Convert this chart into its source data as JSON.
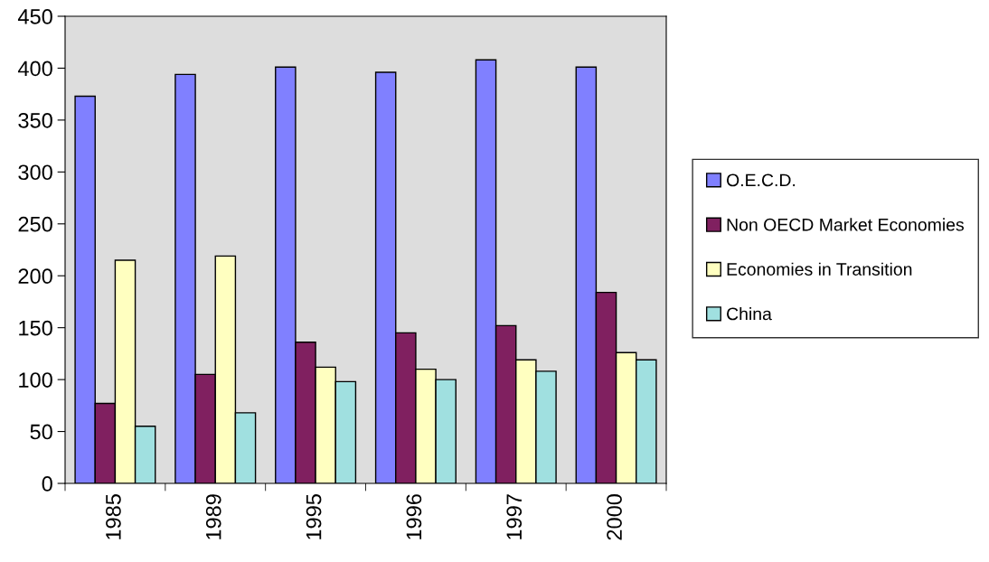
{
  "chart_data": {
    "type": "bar",
    "categories": [
      "1985",
      "1989",
      "1995",
      "1996",
      "1997",
      "2000"
    ],
    "series": [
      {
        "name": "O.E.C.D.",
        "color": "#8080ff",
        "values": [
          373,
          394,
          401,
          396,
          408,
          401
        ]
      },
      {
        "name": "Non OECD Market Economies",
        "color": "#802060",
        "values": [
          77,
          105,
          136,
          145,
          152,
          184
        ]
      },
      {
        "name": "Economies in Transition",
        "color": "#ffffc0",
        "values": [
          215,
          219,
          112,
          110,
          119,
          126
        ]
      },
      {
        "name": "China",
        "color": "#a0e0e0",
        "values": [
          55,
          68,
          98,
          100,
          108,
          119
        ]
      }
    ],
    "ylim": [
      0,
      450
    ],
    "yticks": [
      0,
      50,
      100,
      150,
      200,
      250,
      300,
      350,
      400,
      450
    ],
    "grid": false,
    "legend": "right"
  }
}
